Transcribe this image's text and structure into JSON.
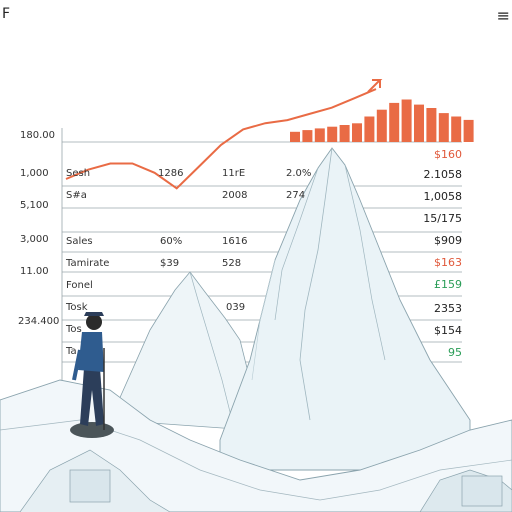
{
  "header": {
    "logo_letter": "F",
    "menu_glyph": "≡"
  },
  "axis_ticks": [
    "180.00",
    "1,000",
    "5,100",
    "3,000",
    "11.00",
    "234.400"
  ],
  "rows": [
    {
      "label": "Sesh",
      "c1": "1286",
      "c2": "11rE",
      "c3": "2.0%",
      "value": "$160",
      "value_color": "#e0583a"
    },
    {
      "label": "S#a",
      "c1": "",
      "c2": "2008",
      "c3": "274",
      "value": "2.1058",
      "value_color": "#222222"
    },
    {
      "label": "",
      "c1": "",
      "c2": "",
      "c3": "",
      "value": "1,0058",
      "value_color": "#222222"
    },
    {
      "label": "",
      "c1": "",
      "c2": "",
      "c3": "",
      "value": "15/175",
      "value_color": "#222222"
    },
    {
      "label": "Sales",
      "c1": "60%",
      "c2": "1616",
      "c3": "",
      "value": "$909",
      "value_color": "#222222"
    },
    {
      "label": "Tamirate",
      "c1": "$39",
      "c2": "528",
      "c3": "",
      "value": "$163",
      "value_color": "#e0583a"
    },
    {
      "label": "Fonel",
      "c1": "",
      "c2": "",
      "c3": "",
      "value": "£159",
      "value_color": "#2a9d57"
    },
    {
      "label": "Tosk",
      "c1": "",
      "c2": "039",
      "c3": "",
      "value": "2353",
      "value_color": "#222222"
    },
    {
      "label": "Tos",
      "c1": "",
      "c2": "",
      "c3": "",
      "value": "$154",
      "value_color": "#222222"
    },
    {
      "label": "Ta",
      "c1": "",
      "c2": "",
      "c3": "",
      "value": "95",
      "value_color": "#2a9d57"
    }
  ],
  "colors": {
    "accent": "#e96b45",
    "mountain_light": "#eaf3f7",
    "mountain_shadow": "#c9dde6",
    "line": "#8aa3ad"
  },
  "chart_data": {
    "type": "line",
    "line_values": [
      20,
      26,
      30,
      30,
      24,
      14,
      28,
      42,
      52,
      56,
      58,
      62,
      66,
      72,
      78
    ],
    "bar_values": [
      12,
      14,
      16,
      18,
      20,
      22,
      30,
      38,
      46,
      50,
      44,
      40,
      34,
      30,
      26
    ],
    "title": "",
    "xlabel": "",
    "ylabel": ""
  }
}
